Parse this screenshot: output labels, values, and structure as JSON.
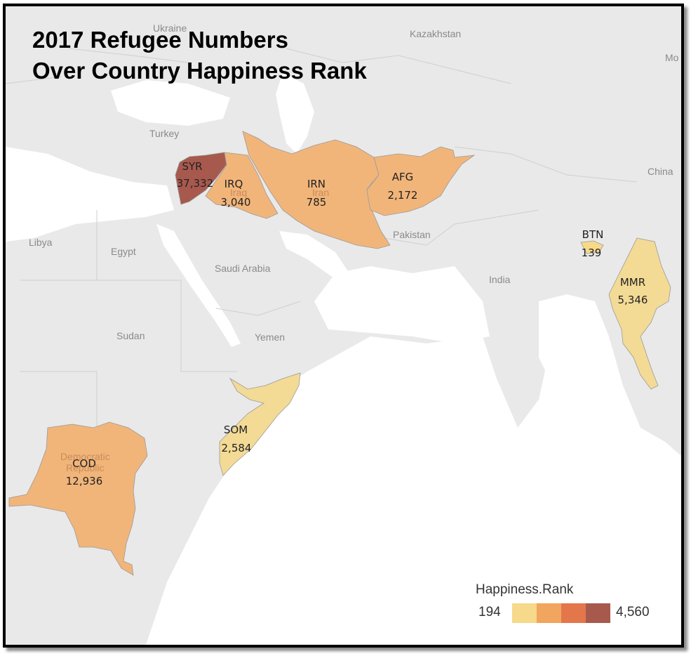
{
  "title_lines": [
    "2017 Refugee Numbers",
    "Over Country Happiness Rank"
  ],
  "legend": {
    "title": "Happiness.Rank",
    "min_label": "194",
    "max_label": "4,560",
    "colors": [
      "#f6d98a",
      "#f1a55e",
      "#e3764a",
      "#a8594e"
    ]
  },
  "map_labels": {
    "ukraine": "Ukraine",
    "kazakhstan": "Kazakhstan",
    "mongolia": "Mo",
    "turkey": "Turkey",
    "china": "China",
    "libya": "Libya",
    "egypt": "Egypt",
    "saudi_arabia": "Saudi Arabia",
    "pakistan": "Pakistan",
    "india": "India",
    "sudan": "Sudan",
    "yemen": "Yemen",
    "iran_bg": "Iran",
    "iraq_bg": "Iraq",
    "drc_bg_1": "Democratic",
    "drc_bg_2": "Republic"
  },
  "countries": [
    {
      "code": "SYR",
      "value": "37,332",
      "color": "#a8594e"
    },
    {
      "code": "IRQ",
      "value": "3,040",
      "color": "#f1b57a"
    },
    {
      "code": "IRN",
      "value": "785",
      "color": "#f1b57a"
    },
    {
      "code": "AFG",
      "value": "2,172",
      "color": "#f1b57a"
    },
    {
      "code": "BTN",
      "value": "139",
      "color": "#f6d98a"
    },
    {
      "code": "MMR",
      "value": "5,346",
      "color": "#f3da95"
    },
    {
      "code": "SOM",
      "value": "2,584",
      "color": "#f3da95"
    },
    {
      "code": "COD",
      "value": "12,936",
      "color": "#f1b57a"
    }
  ]
}
